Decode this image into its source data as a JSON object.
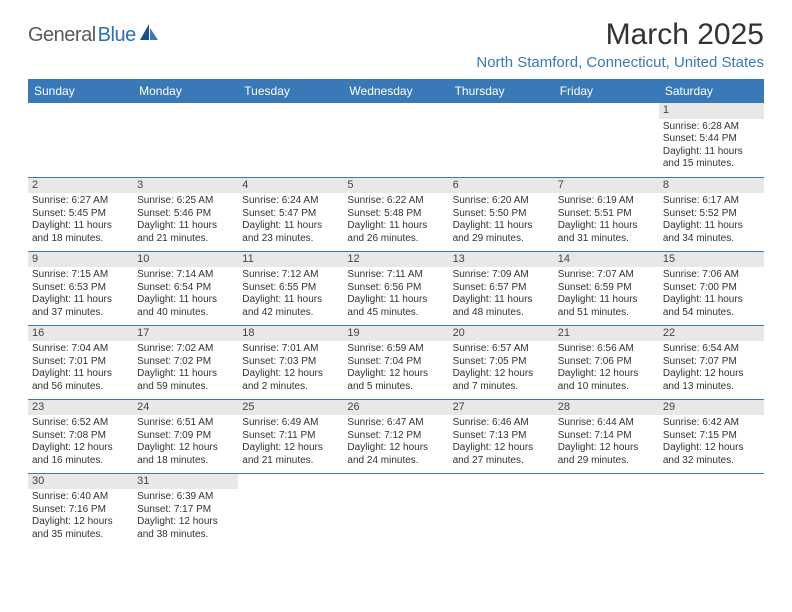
{
  "logo": {
    "text_general": "General",
    "text_blue": "Blue"
  },
  "header": {
    "month_title": "March 2025",
    "location": "North Stamford, Connecticut, United States"
  },
  "colors": {
    "header_bg": "#3a79b7",
    "header_text": "#ffffff",
    "day_bg": "#e8e8e8",
    "border": "#3a79b7",
    "logo_gray": "#5a5a5a",
    "logo_blue": "#2f6fae",
    "location": "#3a79b7"
  },
  "day_headers": [
    "Sunday",
    "Monday",
    "Tuesday",
    "Wednesday",
    "Thursday",
    "Friday",
    "Saturday"
  ],
  "weeks": [
    [
      null,
      null,
      null,
      null,
      null,
      null,
      {
        "n": "1",
        "sr": "Sunrise: 6:28 AM",
        "ss": "Sunset: 5:44 PM",
        "d1": "Daylight: 11 hours",
        "d2": "and 15 minutes."
      }
    ],
    [
      {
        "n": "2",
        "sr": "Sunrise: 6:27 AM",
        "ss": "Sunset: 5:45 PM",
        "d1": "Daylight: 11 hours",
        "d2": "and 18 minutes."
      },
      {
        "n": "3",
        "sr": "Sunrise: 6:25 AM",
        "ss": "Sunset: 5:46 PM",
        "d1": "Daylight: 11 hours",
        "d2": "and 21 minutes."
      },
      {
        "n": "4",
        "sr": "Sunrise: 6:24 AM",
        "ss": "Sunset: 5:47 PM",
        "d1": "Daylight: 11 hours",
        "d2": "and 23 minutes."
      },
      {
        "n": "5",
        "sr": "Sunrise: 6:22 AM",
        "ss": "Sunset: 5:48 PM",
        "d1": "Daylight: 11 hours",
        "d2": "and 26 minutes."
      },
      {
        "n": "6",
        "sr": "Sunrise: 6:20 AM",
        "ss": "Sunset: 5:50 PM",
        "d1": "Daylight: 11 hours",
        "d2": "and 29 minutes."
      },
      {
        "n": "7",
        "sr": "Sunrise: 6:19 AM",
        "ss": "Sunset: 5:51 PM",
        "d1": "Daylight: 11 hours",
        "d2": "and 31 minutes."
      },
      {
        "n": "8",
        "sr": "Sunrise: 6:17 AM",
        "ss": "Sunset: 5:52 PM",
        "d1": "Daylight: 11 hours",
        "d2": "and 34 minutes."
      }
    ],
    [
      {
        "n": "9",
        "sr": "Sunrise: 7:15 AM",
        "ss": "Sunset: 6:53 PM",
        "d1": "Daylight: 11 hours",
        "d2": "and 37 minutes."
      },
      {
        "n": "10",
        "sr": "Sunrise: 7:14 AM",
        "ss": "Sunset: 6:54 PM",
        "d1": "Daylight: 11 hours",
        "d2": "and 40 minutes."
      },
      {
        "n": "11",
        "sr": "Sunrise: 7:12 AM",
        "ss": "Sunset: 6:55 PM",
        "d1": "Daylight: 11 hours",
        "d2": "and 42 minutes."
      },
      {
        "n": "12",
        "sr": "Sunrise: 7:11 AM",
        "ss": "Sunset: 6:56 PM",
        "d1": "Daylight: 11 hours",
        "d2": "and 45 minutes."
      },
      {
        "n": "13",
        "sr": "Sunrise: 7:09 AM",
        "ss": "Sunset: 6:57 PM",
        "d1": "Daylight: 11 hours",
        "d2": "and 48 minutes."
      },
      {
        "n": "14",
        "sr": "Sunrise: 7:07 AM",
        "ss": "Sunset: 6:59 PM",
        "d1": "Daylight: 11 hours",
        "d2": "and 51 minutes."
      },
      {
        "n": "15",
        "sr": "Sunrise: 7:06 AM",
        "ss": "Sunset: 7:00 PM",
        "d1": "Daylight: 11 hours",
        "d2": "and 54 minutes."
      }
    ],
    [
      {
        "n": "16",
        "sr": "Sunrise: 7:04 AM",
        "ss": "Sunset: 7:01 PM",
        "d1": "Daylight: 11 hours",
        "d2": "and 56 minutes."
      },
      {
        "n": "17",
        "sr": "Sunrise: 7:02 AM",
        "ss": "Sunset: 7:02 PM",
        "d1": "Daylight: 11 hours",
        "d2": "and 59 minutes."
      },
      {
        "n": "18",
        "sr": "Sunrise: 7:01 AM",
        "ss": "Sunset: 7:03 PM",
        "d1": "Daylight: 12 hours",
        "d2": "and 2 minutes."
      },
      {
        "n": "19",
        "sr": "Sunrise: 6:59 AM",
        "ss": "Sunset: 7:04 PM",
        "d1": "Daylight: 12 hours",
        "d2": "and 5 minutes."
      },
      {
        "n": "20",
        "sr": "Sunrise: 6:57 AM",
        "ss": "Sunset: 7:05 PM",
        "d1": "Daylight: 12 hours",
        "d2": "and 7 minutes."
      },
      {
        "n": "21",
        "sr": "Sunrise: 6:56 AM",
        "ss": "Sunset: 7:06 PM",
        "d1": "Daylight: 12 hours",
        "d2": "and 10 minutes."
      },
      {
        "n": "22",
        "sr": "Sunrise: 6:54 AM",
        "ss": "Sunset: 7:07 PM",
        "d1": "Daylight: 12 hours",
        "d2": "and 13 minutes."
      }
    ],
    [
      {
        "n": "23",
        "sr": "Sunrise: 6:52 AM",
        "ss": "Sunset: 7:08 PM",
        "d1": "Daylight: 12 hours",
        "d2": "and 16 minutes."
      },
      {
        "n": "24",
        "sr": "Sunrise: 6:51 AM",
        "ss": "Sunset: 7:09 PM",
        "d1": "Daylight: 12 hours",
        "d2": "and 18 minutes."
      },
      {
        "n": "25",
        "sr": "Sunrise: 6:49 AM",
        "ss": "Sunset: 7:11 PM",
        "d1": "Daylight: 12 hours",
        "d2": "and 21 minutes."
      },
      {
        "n": "26",
        "sr": "Sunrise: 6:47 AM",
        "ss": "Sunset: 7:12 PM",
        "d1": "Daylight: 12 hours",
        "d2": "and 24 minutes."
      },
      {
        "n": "27",
        "sr": "Sunrise: 6:46 AM",
        "ss": "Sunset: 7:13 PM",
        "d1": "Daylight: 12 hours",
        "d2": "and 27 minutes."
      },
      {
        "n": "28",
        "sr": "Sunrise: 6:44 AM",
        "ss": "Sunset: 7:14 PM",
        "d1": "Daylight: 12 hours",
        "d2": "and 29 minutes."
      },
      {
        "n": "29",
        "sr": "Sunrise: 6:42 AM",
        "ss": "Sunset: 7:15 PM",
        "d1": "Daylight: 12 hours",
        "d2": "and 32 minutes."
      }
    ],
    [
      {
        "n": "30",
        "sr": "Sunrise: 6:40 AM",
        "ss": "Sunset: 7:16 PM",
        "d1": "Daylight: 12 hours",
        "d2": "and 35 minutes."
      },
      {
        "n": "31",
        "sr": "Sunrise: 6:39 AM",
        "ss": "Sunset: 7:17 PM",
        "d1": "Daylight: 12 hours",
        "d2": "and 38 minutes."
      },
      null,
      null,
      null,
      null,
      null
    ]
  ]
}
